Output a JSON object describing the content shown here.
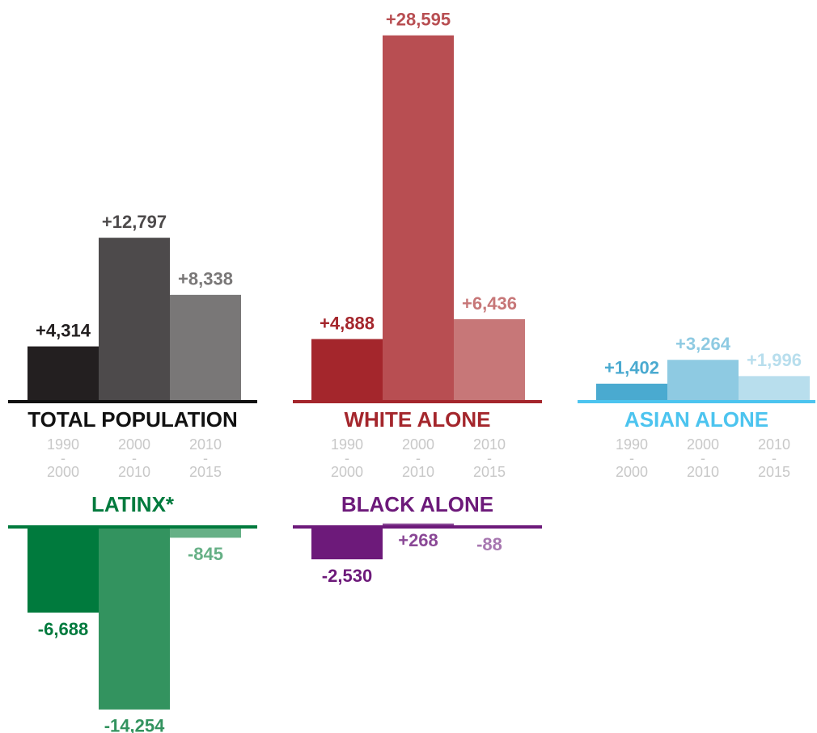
{
  "chart_data": [
    {
      "type": "bar",
      "title": "TOTAL POPULATION",
      "color": "#111111",
      "categories": [
        "1990\n-\n2000",
        "2000\n-\n2010",
        "2010\n-\n2015"
      ],
      "values": [
        4314,
        12797,
        8338
      ],
      "value_labels": [
        "+4,314",
        "+12,797",
        "+8,338"
      ],
      "colors": [
        "#231f20",
        "#4d4a4b",
        "#797777"
      ]
    },
    {
      "type": "bar",
      "title": "WHITE ALONE",
      "color": "#a4262c",
      "categories": [
        "1990\n-\n2000",
        "2000\n-\n2010",
        "2010\n-\n2015"
      ],
      "values": [
        4888,
        28595,
        6436
      ],
      "value_labels": [
        "+4,888",
        "+28,595",
        "+6,436"
      ],
      "colors": [
        "#a4262c",
        "#b84e52",
        "#c77778"
      ]
    },
    {
      "type": "bar",
      "title": "ASIAN ALONE",
      "color": "#4cc4ef",
      "categories": [
        "1990\n-\n2000",
        "2000\n-\n2010",
        "2010\n-\n2015"
      ],
      "values": [
        1402,
        3264,
        1996
      ],
      "value_labels": [
        "+1,402",
        "+3,264",
        "+1,996"
      ],
      "colors": [
        "#4aaad0",
        "#8ecae2",
        "#b8deed"
      ]
    },
    {
      "type": "bar",
      "title": "LATINX*",
      "color": "#007a3d",
      "values": [
        -6688,
        -14254,
        -845
      ],
      "value_labels": [
        "-6,688",
        "-14,254",
        "-845"
      ],
      "colors": [
        "#007a3d",
        "#33935f",
        "#66b086"
      ]
    },
    {
      "type": "bar",
      "title": "BLACK ALONE",
      "color": "#6d1a7a",
      "values": [
        -2530,
        268,
        -88
      ],
      "value_labels": [
        "-2,530",
        "+268",
        "-88"
      ],
      "colors": [
        "#6d1a7a",
        "#8a4896",
        "#a777b0"
      ]
    }
  ]
}
